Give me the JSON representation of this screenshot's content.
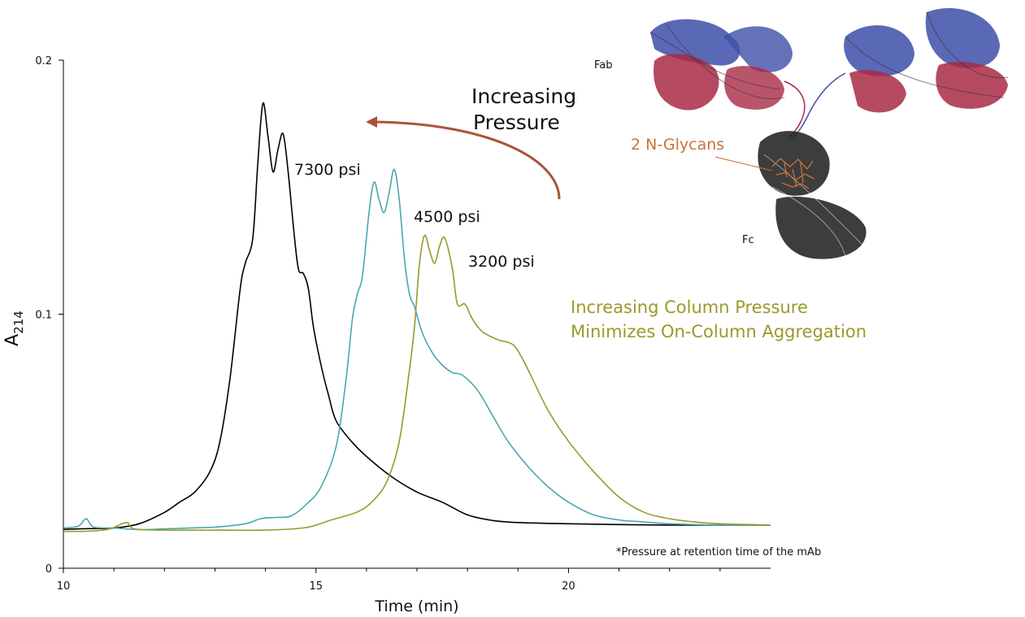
{
  "chart_data": {
    "type": "line",
    "xlabel": "Time (min)",
    "ylabel_main": "A",
    "ylabel_sub": "214",
    "xlim": [
      10,
      24
    ],
    "ylim": [
      0,
      0.2
    ],
    "x_ticks": [
      {
        "value": 10,
        "label": "10"
      },
      {
        "value": 15,
        "label": "15"
      },
      {
        "value": 20,
        "label": "20"
      }
    ],
    "x_minor_ticks": [
      11,
      12,
      13,
      14,
      16,
      17,
      18,
      19,
      21,
      22,
      23
    ],
    "y_ticks": [
      {
        "value": 0,
        "label": "0"
      },
      {
        "value": 0.1,
        "label": "0.1"
      },
      {
        "value": 0.2,
        "label": "0.2"
      }
    ],
    "series": [
      {
        "name": "7300 psi",
        "color": "#000000",
        "points": [
          [
            10,
            0.0153
          ],
          [
            10.5,
            0.0156
          ],
          [
            11,
            0.0158
          ],
          [
            11.5,
            0.0175
          ],
          [
            12,
            0.022
          ],
          [
            12.3,
            0.026
          ],
          [
            12.6,
            0.03
          ],
          [
            12.9,
            0.038
          ],
          [
            13.1,
            0.05
          ],
          [
            13.3,
            0.075
          ],
          [
            13.5,
            0.11
          ],
          [
            13.6,
            0.12
          ],
          [
            13.75,
            0.13
          ],
          [
            13.85,
            0.16
          ],
          [
            13.95,
            0.183
          ],
          [
            14.05,
            0.17
          ],
          [
            14.15,
            0.156
          ],
          [
            14.25,
            0.165
          ],
          [
            14.35,
            0.171
          ],
          [
            14.45,
            0.156
          ],
          [
            14.55,
            0.135
          ],
          [
            14.65,
            0.118
          ],
          [
            14.75,
            0.116
          ],
          [
            14.85,
            0.11
          ],
          [
            14.95,
            0.095
          ],
          [
            15.1,
            0.08
          ],
          [
            15.25,
            0.068
          ],
          [
            15.4,
            0.058
          ],
          [
            15.7,
            0.05
          ],
          [
            16,
            0.044
          ],
          [
            16.5,
            0.036
          ],
          [
            17,
            0.03
          ],
          [
            17.5,
            0.026
          ],
          [
            18,
            0.021
          ],
          [
            18.5,
            0.0188
          ],
          [
            19,
            0.018
          ],
          [
            20,
            0.0175
          ],
          [
            21,
            0.0172
          ],
          [
            22,
            0.017
          ],
          [
            23,
            0.017
          ],
          [
            24,
            0.017
          ]
        ]
      },
      {
        "name": "4500 psi",
        "color": "#4aa8ad",
        "points": [
          [
            10,
            0.0158
          ],
          [
            10.3,
            0.0166
          ],
          [
            10.45,
            0.0195
          ],
          [
            10.6,
            0.0162
          ],
          [
            11,
            0.0158
          ],
          [
            11.5,
            0.0152
          ],
          [
            12,
            0.0155
          ],
          [
            13,
            0.0162
          ],
          [
            13.6,
            0.0175
          ],
          [
            13.9,
            0.0195
          ],
          [
            14.2,
            0.02
          ],
          [
            14.5,
            0.0205
          ],
          [
            14.8,
            0.025
          ],
          [
            15.1,
            0.032
          ],
          [
            15.4,
            0.048
          ],
          [
            15.6,
            0.075
          ],
          [
            15.72,
            0.098
          ],
          [
            15.82,
            0.108
          ],
          [
            15.92,
            0.115
          ],
          [
            16.05,
            0.14
          ],
          [
            16.15,
            0.152
          ],
          [
            16.25,
            0.145
          ],
          [
            16.35,
            0.14
          ],
          [
            16.45,
            0.148
          ],
          [
            16.55,
            0.157
          ],
          [
            16.65,
            0.145
          ],
          [
            16.75,
            0.122
          ],
          [
            16.85,
            0.108
          ],
          [
            16.95,
            0.103
          ],
          [
            17.1,
            0.093
          ],
          [
            17.3,
            0.085
          ],
          [
            17.5,
            0.08
          ],
          [
            17.7,
            0.077
          ],
          [
            17.9,
            0.076
          ],
          [
            18.2,
            0.07
          ],
          [
            18.5,
            0.06
          ],
          [
            18.8,
            0.05
          ],
          [
            19.2,
            0.04
          ],
          [
            19.6,
            0.032
          ],
          [
            20,
            0.026
          ],
          [
            20.5,
            0.021
          ],
          [
            21,
            0.019
          ],
          [
            21.5,
            0.0182
          ],
          [
            22,
            0.0175
          ],
          [
            23,
            0.017
          ],
          [
            24,
            0.017
          ]
        ]
      },
      {
        "name": "3200 psi",
        "color": "#999a2b",
        "points": [
          [
            10,
            0.0145
          ],
          [
            10.5,
            0.0146
          ],
          [
            10.9,
            0.0154
          ],
          [
            11.25,
            0.018
          ],
          [
            11.4,
            0.0155
          ],
          [
            12,
            0.015
          ],
          [
            13,
            0.015
          ],
          [
            14,
            0.015
          ],
          [
            14.8,
            0.016
          ],
          [
            15.3,
            0.019
          ],
          [
            15.8,
            0.022
          ],
          [
            16.1,
            0.026
          ],
          [
            16.4,
            0.034
          ],
          [
            16.65,
            0.05
          ],
          [
            16.85,
            0.078
          ],
          [
            16.95,
            0.095
          ],
          [
            17.05,
            0.12
          ],
          [
            17.15,
            0.131
          ],
          [
            17.25,
            0.125
          ],
          [
            17.35,
            0.12
          ],
          [
            17.45,
            0.127
          ],
          [
            17.55,
            0.13
          ],
          [
            17.7,
            0.118
          ],
          [
            17.8,
            0.104
          ],
          [
            17.95,
            0.104
          ],
          [
            18.1,
            0.098
          ],
          [
            18.3,
            0.093
          ],
          [
            18.6,
            0.09
          ],
          [
            18.9,
            0.088
          ],
          [
            19.1,
            0.082
          ],
          [
            19.3,
            0.074
          ],
          [
            19.6,
            0.062
          ],
          [
            20,
            0.05
          ],
          [
            20.5,
            0.038
          ],
          [
            21,
            0.028
          ],
          [
            21.5,
            0.022
          ],
          [
            22,
            0.0195
          ],
          [
            22.5,
            0.0182
          ],
          [
            23,
            0.0175
          ],
          [
            24,
            0.017
          ]
        ]
      }
    ],
    "annotations": {
      "peak_7300": "7300 psi",
      "peak_4500": "4500 psi",
      "peak_3200": "3200 psi",
      "increasing_pressure_line1": "Increasing",
      "increasing_pressure_line2": "Pressure",
      "column_pressure_line1": "Increasing Column Pressure",
      "column_pressure_line2": "Minimizes On-Column Aggregation",
      "footnote": "*Pressure at retention time of the mAb",
      "fab_label": "Fab",
      "fc_label": "Fc",
      "glycans_label": "2 N-Glycans"
    },
    "colors": {
      "arrow": "#a9543a",
      "green_text": "#999a2b",
      "glycan_text": "#c8733a",
      "protein_blue": "#3d4fa8",
      "protein_red": "#a82a45",
      "protein_dark": "#222222"
    }
  }
}
